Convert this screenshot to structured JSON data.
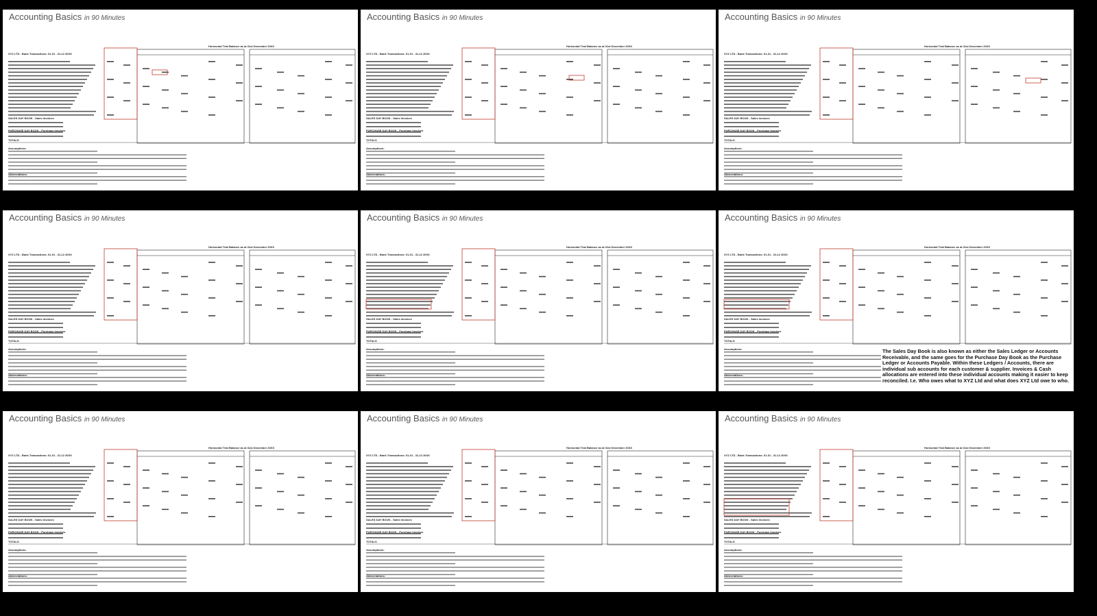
{
  "frames": [
    {
      "title": "Accounting Basics",
      "subtitle": "in 90 Minutes"
    },
    {
      "title": "Accounting Basics",
      "subtitle": "in 90 Minutes"
    },
    {
      "title": "Accounting Basics",
      "subtitle": "in 90 Minutes"
    },
    {
      "title": "Accounting Basics",
      "subtitle": "in 90 Minutes"
    },
    {
      "title": "Accounting Basics",
      "subtitle": "in 90 Minutes"
    },
    {
      "title": "Accounting Basics",
      "subtitle": "in 90 Minutes",
      "note": "The Sales Day Book is also known as either the Sales Ledger or Accounts Receivable, and the same goes for the Purchase Day Book as the Purchase Ledger or Accounts Payable. Within these Ledgers / Accounts, there are individual sub accounts for each customer & supplier. Invoices & Cash allocations are entered into these individual accounts making it easier to keep reconciled. I.e. Who owes what to XYZ Ltd and what does XYZ Ltd owe to who."
    },
    {
      "title": "Accounting Basics",
      "subtitle": "in 90 Minutes"
    },
    {
      "title": "Accounting Basics",
      "subtitle": "in 90 Minutes"
    },
    {
      "title": "Accounting Basics",
      "subtitle": "in 90 Minutes"
    }
  ],
  "sheet": {
    "heading": "XYZ LTD - Bank Transactions: 01-01 - 31-12 20XX",
    "trial_balance": "Horizontal Trial Balance as at 31st December 20XX",
    "sales_book": "SALES DAY BOOK - Sales Invoices",
    "purchase_book": "PURCHASE DAY BOOK - Purchase Invoices",
    "totals": "TOTALS",
    "assumptions": "Assumptions:",
    "abbreviations": "Abbreviations:"
  }
}
